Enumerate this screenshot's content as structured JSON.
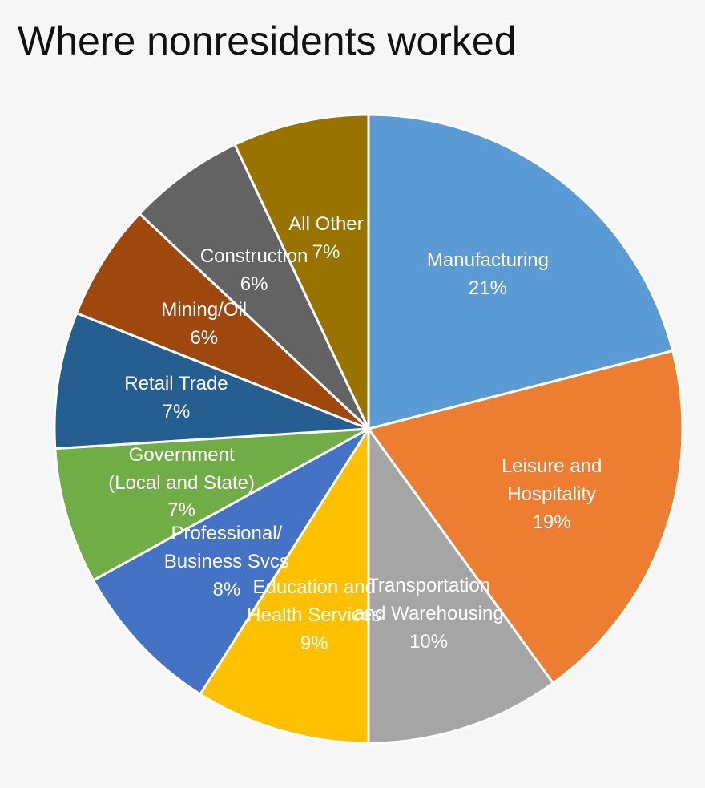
{
  "chart_data": {
    "type": "pie",
    "title": "Where nonresidents worked",
    "categories": [
      "Manufacturing",
      "Leisure and Hospitality",
      "Transportation and Warehousing",
      "Education and Health Services",
      "Professional/ Business Svcs",
      "Government (Local and State)",
      "Retail Trade",
      "Mining/Oil",
      "Construction",
      "All Other"
    ],
    "values": [
      21,
      19,
      10,
      9,
      8,
      7,
      7,
      6,
      6,
      7
    ],
    "value_labels": [
      "21%",
      "19%",
      "10%",
      "9%",
      "8%",
      "7%",
      "7%",
      "6%",
      "6%",
      "7%"
    ],
    "colors": [
      "#5b9bd5",
      "#ed7d31",
      "#a5a5a5",
      "#ffc000",
      "#4472c4",
      "#70ad47",
      "#255e91",
      "#9e480e",
      "#636363",
      "#997300"
    ]
  }
}
